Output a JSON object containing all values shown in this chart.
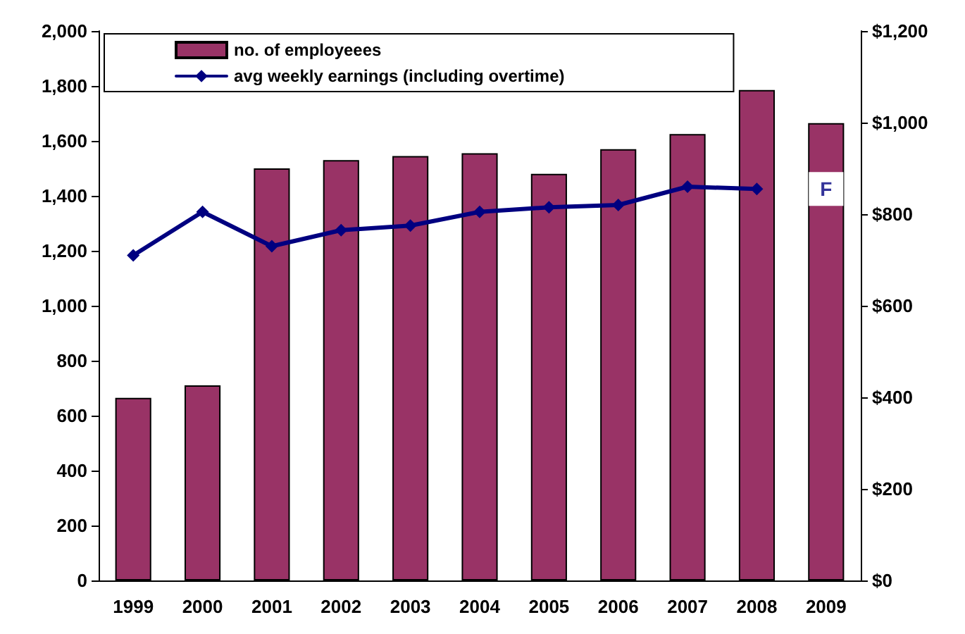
{
  "chart_data": {
    "type": "bar",
    "categories": [
      "1999",
      "2000",
      "2001",
      "2002",
      "2003",
      "2004",
      "2005",
      "2006",
      "2007",
      "2008",
      "2009"
    ],
    "series": [
      {
        "name": "no. of employeees",
        "color": "#993366",
        "values": [
          665,
          710,
          1500,
          1530,
          1545,
          1555,
          1480,
          1570,
          1625,
          1785,
          1665
        ]
      },
      {
        "name": "avg weekly earnings (including overtime)",
        "type": "line",
        "axis": "y2",
        "color": "#000080",
        "values": [
          710,
          805,
          730,
          765,
          775,
          805,
          815,
          820,
          860,
          855,
          null
        ]
      }
    ],
    "ylim": [
      0,
      2000
    ],
    "yticks": [
      {
        "value": 0,
        "label": "0"
      },
      {
        "value": 200,
        "label": "200"
      },
      {
        "value": 400,
        "label": "400"
      },
      {
        "value": 600,
        "label": "600"
      },
      {
        "value": 800,
        "label": "800"
      },
      {
        "value": 1000,
        "label": "1,000"
      },
      {
        "value": 1200,
        "label": "1,200"
      },
      {
        "value": 1400,
        "label": "1,400"
      },
      {
        "value": 1600,
        "label": "1,600"
      },
      {
        "value": 1800,
        "label": "1,800"
      },
      {
        "value": 2000,
        "label": "2,000"
      }
    ],
    "y2lim": [
      0,
      1200
    ],
    "y2ticks": [
      {
        "value": 0,
        "label": "$0"
      },
      {
        "value": 200,
        "label": "$200"
      },
      {
        "value": 400,
        "label": "$400"
      },
      {
        "value": 600,
        "label": "$600"
      },
      {
        "value": 800,
        "label": "$800"
      },
      {
        "value": 1000,
        "label": "$1,000"
      },
      {
        "value": 1200,
        "label": "$1,200"
      }
    ],
    "annotations": [
      {
        "text": "F",
        "x": "2009",
        "y": 1425
      }
    ],
    "legend": "top left",
    "grid": false,
    "marker": "diamond",
    "line_style": "solid"
  }
}
